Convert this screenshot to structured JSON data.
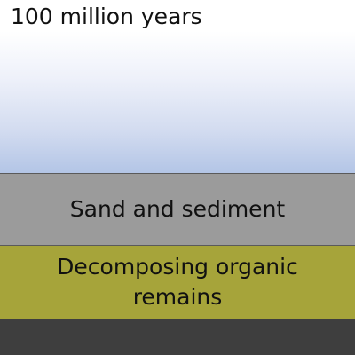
{
  "timeline": {
    "label": "100 million years"
  },
  "layers": {
    "sand": {
      "label": "Sand and sediment",
      "color": "#9b9b9b"
    },
    "organic": {
      "label": "Decomposing organic remains",
      "color": "#a6a43a"
    },
    "bedrock": {
      "color": "#3e3e3e"
    }
  },
  "colors": {
    "sky_top": "#ffffff",
    "sky_bottom": "#b3c5e6"
  }
}
